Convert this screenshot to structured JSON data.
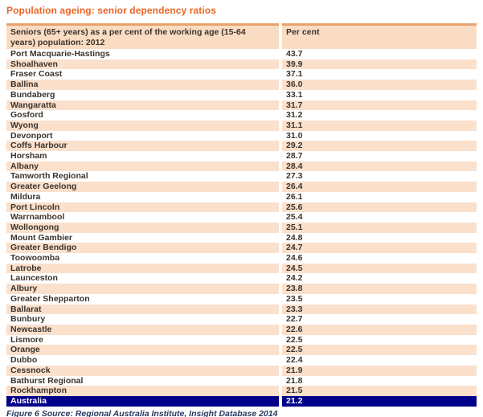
{
  "chart_data": {
    "type": "table",
    "title": "Population ageing: senior dependency ratios",
    "columns": [
      "Seniors (65+ years) as a per cent of the working age (15-64 years) population: 2012",
      "Per cent"
    ],
    "rows": [
      {
        "name": "Port Macquarie-Hastings",
        "value": "43.7"
      },
      {
        "name": "Shoalhaven",
        "value": "39.9"
      },
      {
        "name": "Fraser Coast",
        "value": "37.1"
      },
      {
        "name": "Ballina",
        "value": "36.0"
      },
      {
        "name": "Bundaberg",
        "value": "33.1"
      },
      {
        "name": "Wangaratta",
        "value": "31.7"
      },
      {
        "name": "Gosford",
        "value": "31.2"
      },
      {
        "name": "Wyong",
        "value": "31.1"
      },
      {
        "name": "Devonport",
        "value": "31.0"
      },
      {
        "name": "Coffs Harbour",
        "value": "29.2"
      },
      {
        "name": "Horsham",
        "value": "28.7"
      },
      {
        "name": "Albany",
        "value": "28.4"
      },
      {
        "name": "Tamworth Regional",
        "value": "27.3"
      },
      {
        "name": "Greater Geelong",
        "value": "26.4"
      },
      {
        "name": "Mildura",
        "value": "26.1"
      },
      {
        "name": "Port Lincoln",
        "value": "25.6"
      },
      {
        "name": "Warrnambool",
        "value": "25.4"
      },
      {
        "name": "Wollongong",
        "value": "25.1"
      },
      {
        "name": "Mount Gambier",
        "value": "24.8"
      },
      {
        "name": "Greater Bendigo",
        "value": "24.7"
      },
      {
        "name": "Toowoomba",
        "value": "24.6"
      },
      {
        "name": "Latrobe",
        "value": "24.5"
      },
      {
        "name": "Launceston",
        "value": "24.2"
      },
      {
        "name": "Albury",
        "value": "23.8"
      },
      {
        "name": "Greater Shepparton",
        "value": "23.5"
      },
      {
        "name": "Ballarat",
        "value": "23.3"
      },
      {
        "name": "Bunbury",
        "value": "22.7"
      },
      {
        "name": "Newcastle",
        "value": "22.6"
      },
      {
        "name": "Lismore",
        "value": "22.5"
      },
      {
        "name": "Orange",
        "value": "22.5"
      },
      {
        "name": "Dubbo",
        "value": "22.4"
      },
      {
        "name": "Cessnock",
        "value": "21.9"
      },
      {
        "name": "Bathurst Regional",
        "value": "21.8"
      },
      {
        "name": "Rockhampton",
        "value": "21.5"
      },
      {
        "name": "Australia",
        "value": "21.2",
        "highlight": true
      }
    ],
    "source_note": "Figure 6 Source: Regional Australia Institute, Insight Database 2014",
    "layout": {
      "zebra_striping": true,
      "first_row_background": "white",
      "highlight_row": "Australia"
    }
  },
  "colors": {
    "title_orange": "#eb6424",
    "table_top_border": "#e9a26c",
    "header_background": "#fadcc3",
    "row_stripe_peach": "#fbe0cc",
    "highlight_navy": "#00008b",
    "highlight_text": "#ffffff",
    "body_text": "#3b342c",
    "caption_blue": "#26395f"
  }
}
